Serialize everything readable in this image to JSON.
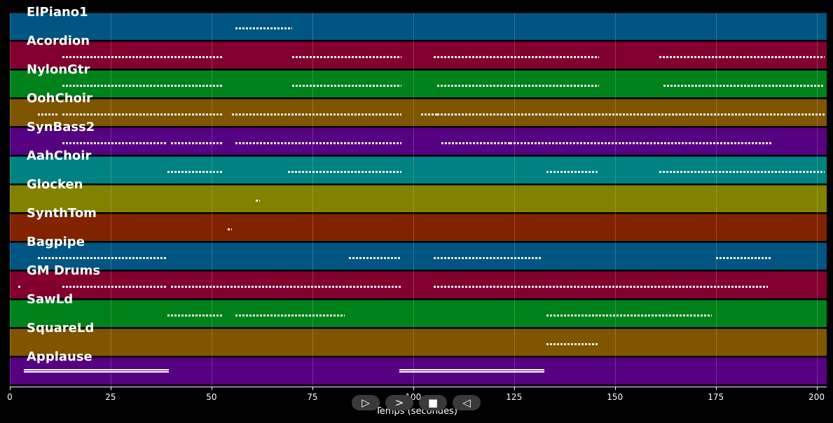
{
  "axis": {
    "title": "Temps (secondes)",
    "ticks": [
      0,
      25,
      50,
      75,
      100,
      125,
      150,
      175,
      200
    ],
    "range": [
      0,
      202.5
    ]
  },
  "transport": {
    "play_icon": "play-icon",
    "forward_icon": "forward-icon",
    "stop_icon": "stop-icon",
    "back_icon": "back-icon"
  },
  "tracks": [
    {
      "name": "ElPiano1",
      "color": "#005582",
      "notes": [
        [
          56,
          70
        ]
      ]
    },
    {
      "name": "Acordion",
      "color": "#82002e",
      "notes": [
        [
          13,
          53
        ],
        [
          70,
          97
        ],
        [
          105,
          146
        ],
        [
          161,
          202
        ]
      ]
    },
    {
      "name": "NylonGtr",
      "color": "#00821a",
      "notes": [
        [
          13,
          53
        ],
        [
          70,
          97
        ],
        [
          106,
          146
        ],
        [
          162,
          202
        ]
      ]
    },
    {
      "name": "OohChoir",
      "color": "#7f5500",
      "notes": [
        [
          7,
          12
        ],
        [
          13,
          53
        ],
        [
          55,
          97
        ],
        [
          102,
          106
        ],
        [
          106,
          202
        ]
      ]
    },
    {
      "name": "SynBass2",
      "color": "#560082",
      "notes": [
        [
          13,
          39
        ],
        [
          40,
          53
        ],
        [
          56,
          97
        ],
        [
          107,
          124
        ],
        [
          124,
          189
        ]
      ]
    },
    {
      "name": "AahChoir",
      "color": "#008282",
      "notes": [
        [
          39,
          53
        ],
        [
          69,
          97
        ],
        [
          133,
          146
        ],
        [
          161,
          202
        ]
      ]
    },
    {
      "name": "Glocken",
      "color": "#828200",
      "notes": [
        [
          61,
          62
        ]
      ]
    },
    {
      "name": "SynthTom",
      "color": "#822300",
      "notes": [
        [
          54,
          55
        ]
      ]
    },
    {
      "name": "Bagpipe",
      "color": "#005582",
      "notes": [
        [
          7,
          39
        ],
        [
          84,
          97
        ],
        [
          105,
          132
        ],
        [
          175,
          189
        ]
      ]
    },
    {
      "name": "GM Drums",
      "color": "#82002e",
      "notes": [
        [
          2,
          3
        ],
        [
          13,
          39
        ],
        [
          40,
          97
        ],
        [
          105,
          188
        ]
      ]
    },
    {
      "name": "SawLd",
      "color": "#00821a",
      "notes": [
        [
          39,
          53
        ],
        [
          56,
          83
        ],
        [
          133,
          174
        ]
      ]
    },
    {
      "name": "SquareLd",
      "color": "#7f5500",
      "notes": [
        [
          133,
          146
        ]
      ]
    },
    {
      "name": "Applause",
      "color": "#560082",
      "notes": [
        [
          3.5,
          39.5
        ],
        [
          96.5,
          132.5
        ]
      ]
    }
  ]
}
